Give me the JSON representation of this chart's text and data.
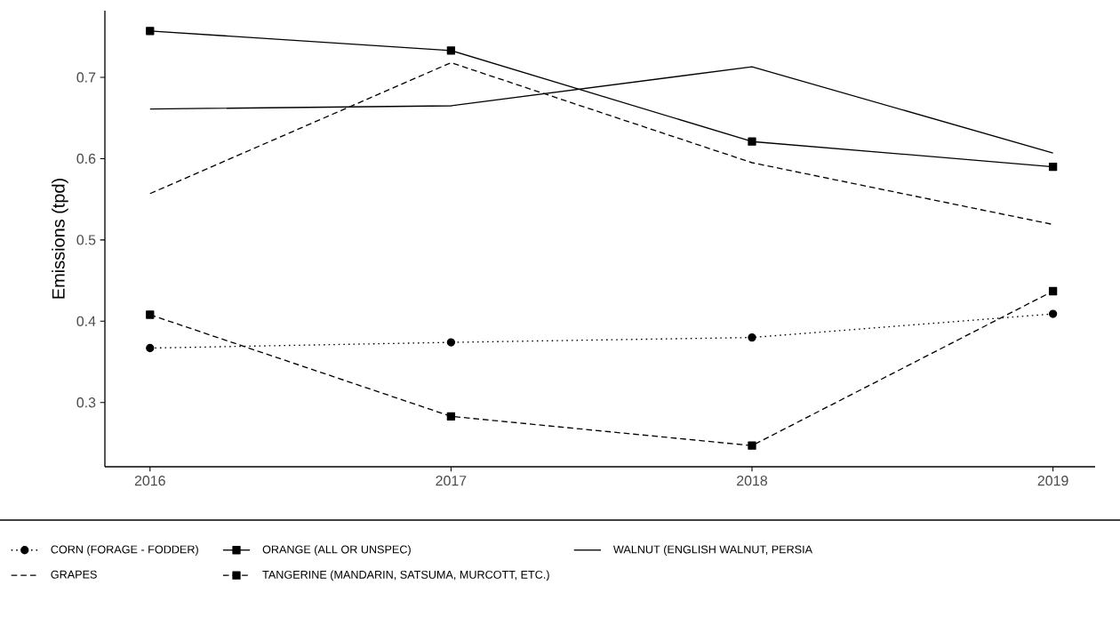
{
  "chart_data": {
    "type": "line",
    "ylabel": "Emissions (tpd)",
    "x": [
      2016,
      2017,
      2018,
      2019
    ],
    "xlim": [
      2015.85,
      2019.14
    ],
    "ylim": [
      0.221,
      0.782
    ],
    "xticks": [
      2016,
      2017,
      2018,
      2019
    ],
    "yticks": [
      0.3,
      0.4,
      0.5,
      0.6,
      0.7
    ],
    "legend": "bottom",
    "series": [
      {
        "name": "CORN (FORAGE - FODDER)",
        "color": "#000000",
        "values": [
          0.367,
          0.374,
          0.38,
          0.409
        ],
        "line_style": "dotted",
        "marker": "circle"
      },
      {
        "name": "GRAPES",
        "color": "#000000",
        "values": [
          0.557,
          0.718,
          0.595,
          0.519
        ],
        "line_style": "dashed",
        "marker": "none"
      },
      {
        "name": "ORANGE (ALL OR UNSPEC)",
        "color": "#000000",
        "values": [
          0.757,
          0.733,
          0.621,
          0.59
        ],
        "line_style": "solid",
        "marker": "square"
      },
      {
        "name": "TANGERINE (MANDARIN, SATSUMA, MURCOTT, ETC.)",
        "color": "#000000",
        "values": [
          0.408,
          0.283,
          0.247,
          0.437
        ],
        "line_style": "dashed",
        "marker": "square"
      },
      {
        "name": "WALNUT (ENGLISH WALNUT, PERSIA",
        "color": "#000000",
        "values": [
          0.661,
          0.665,
          0.713,
          0.607
        ],
        "line_style": "solid",
        "marker": "none"
      }
    ]
  }
}
